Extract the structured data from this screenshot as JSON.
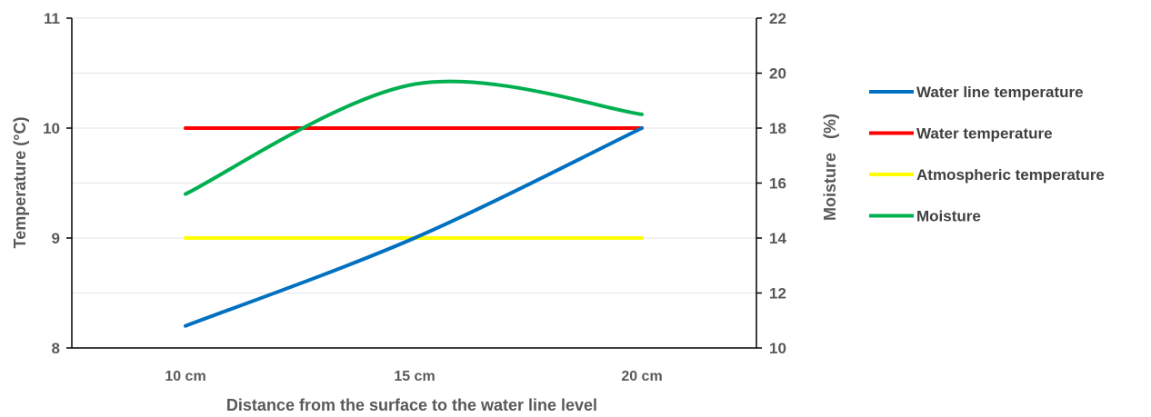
{
  "chart_data": {
    "type": "line",
    "categories": [
      "10 cm",
      "15 cm",
      "20 cm"
    ],
    "xlabel": "Distance from the surface to the water line level",
    "ylabel_left": "Temperature (°C)",
    "ylabel_right": "Moisture   (%)",
    "ylim_left": [
      8,
      11
    ],
    "yticks_left": [
      "8",
      "9",
      "10",
      "11"
    ],
    "ylim_right": [
      10,
      22
    ],
    "yticks_right": [
      "10",
      "12",
      "14",
      "16",
      "18",
      "20",
      "22"
    ],
    "grid": true,
    "legend_position": "right",
    "series": [
      {
        "name": "Water line temperature",
        "axis": "left",
        "color": "#0070C0",
        "values": [
          8.2,
          9.0,
          10.0
        ]
      },
      {
        "name": "Water temperature",
        "axis": "left",
        "color": "#FF0000",
        "values": [
          10.0,
          10.0,
          10.0
        ]
      },
      {
        "name": "Atmospheric temperature",
        "axis": "left",
        "color": "#FFFF00",
        "values": [
          9.0,
          9.0,
          9.0
        ]
      },
      {
        "name": "Moisture",
        "axis": "right",
        "color": "#00B050",
        "values": [
          15.6,
          19.6,
          18.5
        ]
      }
    ]
  }
}
